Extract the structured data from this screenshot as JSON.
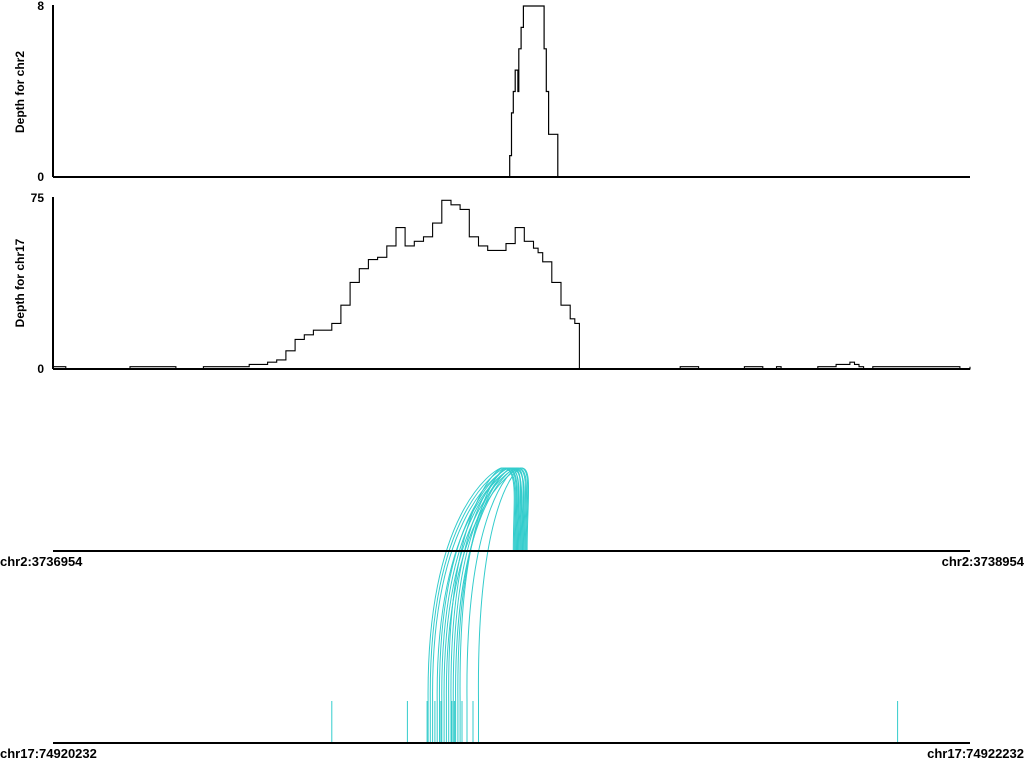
{
  "chart_data": [
    {
      "type": "area",
      "ylabel": "Depth for chr2",
      "ylim": [
        0,
        8
      ],
      "yticks": [
        "0",
        "8"
      ],
      "xlim": [
        3736954,
        3738954
      ],
      "x": [
        3736954,
        3737946,
        3737950,
        3737954,
        3737958,
        3737962,
        3737966,
        3737968,
        3737970,
        3737975,
        3737980,
        3737985,
        3737990,
        3738020,
        3738025,
        3738030,
        3738035,
        3738045,
        3738050,
        3738055,
        3738060,
        3738954
      ],
      "values": [
        0,
        0,
        1,
        3,
        4,
        5,
        5,
        4,
        6,
        7,
        8,
        8,
        8,
        8,
        6,
        4,
        2,
        2,
        2,
        0,
        0,
        0
      ]
    },
    {
      "type": "area",
      "ylabel": "Depth for chr17",
      "ylim": [
        0,
        75
      ],
      "yticks": [
        "0",
        "75"
      ],
      "xlim": [
        74920232,
        74922232
      ],
      "x": [
        74920232,
        74920250,
        74920260,
        74920265,
        74920390,
        74920400,
        74920490,
        74920500,
        74920540,
        74920560,
        74920570,
        74920640,
        74920660,
        74920700,
        74920720,
        74920740,
        74920760,
        74920780,
        74920800,
        74920820,
        74920840,
        74920860,
        74920880,
        74920900,
        74920920,
        74920940,
        74920960,
        74920980,
        74921000,
        74921020,
        74921040,
        74921060,
        74921080,
        74921100,
        74921120,
        74921140,
        74921160,
        74921180,
        74921200,
        74921220,
        74921240,
        74921260,
        74921280,
        74921290,
        74921300,
        74921320,
        74921340,
        74921360,
        74921370,
        74921380,
        74921400,
        74921420,
        74921440,
        74921460,
        74921480,
        74921490,
        74921495,
        74921500,
        74921505,
        74921520,
        74921600,
        74921640,
        74921740,
        74921780,
        74921810,
        74921820,
        74921830,
        74921900,
        74921940,
        74921960,
        74921970,
        74921980,
        74921990,
        74922000,
        74922010,
        74922020,
        74922200,
        74922210,
        74922232
      ],
      "values": [
        1,
        1,
        0,
        0,
        0,
        1,
        1,
        0,
        0,
        1,
        1,
        1,
        2,
        3,
        4,
        8,
        13,
        15,
        17,
        17,
        20,
        28,
        38,
        44,
        48,
        49,
        54,
        62,
        54,
        56,
        58,
        64,
        74,
        72,
        70,
        58,
        54,
        52,
        52,
        55,
        62,
        56,
        53,
        51,
        47,
        38,
        28,
        22,
        20,
        0,
        0,
        0,
        0,
        0,
        0,
        0,
        0,
        0,
        0,
        0,
        1,
        0,
        1,
        0,
        1,
        0,
        0,
        1,
        2,
        2,
        3,
        2,
        1,
        0,
        0,
        1,
        1,
        0,
        1
      ]
    },
    {
      "type": "arc",
      "top_axis": {
        "start": "chr2:3736954",
        "end": "chr2:3738954",
        "range": [
          3736954,
          3738954
        ]
      },
      "bottom_axis": {
        "start": "chr17:74920232",
        "end": "chr17:74922232",
        "range": [
          74920232,
          74922232
        ]
      },
      "split_reads": [
        {
          "chr2": 3737958,
          "chr17": 74921050
        },
        {
          "chr2": 3737962,
          "chr17": 74921055
        },
        {
          "chr2": 3737966,
          "chr17": 74921060
        },
        {
          "chr2": 3737970,
          "chr17": 74921070
        },
        {
          "chr2": 3737974,
          "chr17": 74921075
        },
        {
          "chr2": 3737978,
          "chr17": 74921080
        },
        {
          "chr2": 3737982,
          "chr17": 74921085
        },
        {
          "chr2": 3737986,
          "chr17": 74921090
        },
        {
          "chr2": 3737960,
          "chr17": 74921095
        },
        {
          "chr2": 3737968,
          "chr17": 74921100
        },
        {
          "chr2": 3737972,
          "chr17": 74921105
        },
        {
          "chr2": 3737976,
          "chr17": 74921110
        },
        {
          "chr2": 3737980,
          "chr17": 74921115
        },
        {
          "chr2": 3737964,
          "chr17": 74921120
        },
        {
          "chr2": 3737984,
          "chr17": 74921135
        },
        {
          "chr2": 3737988,
          "chr17": 74921160
        }
      ],
      "unpaired_reads_chr17": [
        74920840,
        74921005,
        74921048,
        74921065,
        74921078,
        74921102,
        74921108,
        74921124,
        74921148,
        74922074
      ]
    }
  ],
  "colors": {
    "depth_line": "#000000",
    "read_arc": "#33cccc",
    "axis": "#000000"
  }
}
